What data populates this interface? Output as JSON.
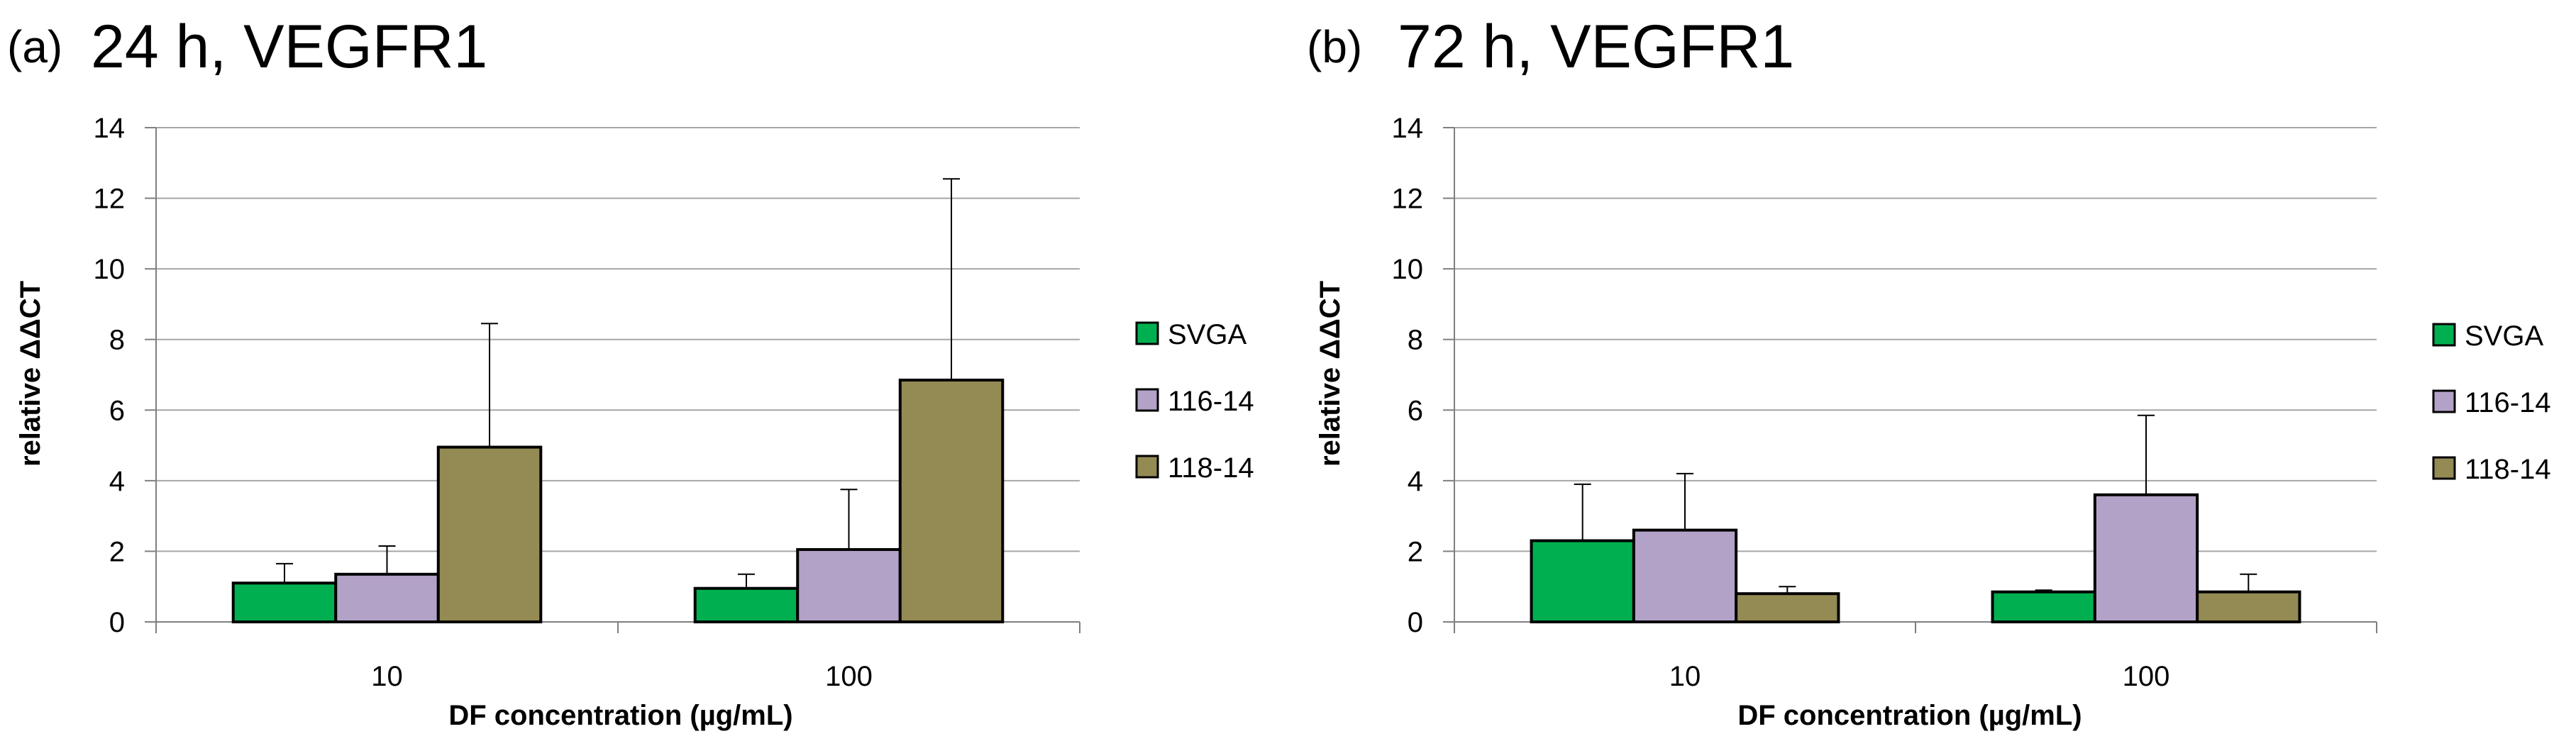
{
  "colors": {
    "SVGA": "#00b050",
    "116-14": "#b3a2c7",
    "118-14": "#948a54",
    "grid": "#a6a6a6",
    "axis": "#7f7f7f"
  },
  "chart_data": [
    {
      "type": "bar",
      "panel": "(a)",
      "title": "24 h, VEGFR1",
      "categories": [
        "10",
        "100"
      ],
      "series": [
        {
          "name": "SVGA",
          "values": [
            1.1,
            0.95
          ],
          "errors": [
            0.55,
            0.4
          ]
        },
        {
          "name": "116-14",
          "values": [
            1.35,
            2.05
          ],
          "errors": [
            0.8,
            1.7
          ]
        },
        {
          "name": "118-14",
          "values": [
            4.95,
            6.85
          ],
          "errors": [
            3.5,
            5.7
          ]
        }
      ],
      "xlabel": "DF concentration (µg/mL)",
      "ylabel": "relative ΔΔCT",
      "ylim": [
        0,
        14
      ],
      "yticks": [
        "0",
        "2",
        "4",
        "6",
        "8",
        "10",
        "12",
        "14"
      ],
      "grid": true,
      "legend_position": "right"
    },
    {
      "type": "bar",
      "panel": "(b)",
      "title": "72 h, VEGFR1",
      "categories": [
        "10",
        "100"
      ],
      "series": [
        {
          "name": "SVGA",
          "values": [
            2.3,
            0.85
          ],
          "errors": [
            1.6,
            0.05
          ]
        },
        {
          "name": "116-14",
          "values": [
            2.6,
            3.6
          ],
          "errors": [
            1.6,
            2.25
          ]
        },
        {
          "name": "118-14",
          "values": [
            0.8,
            0.85
          ],
          "errors": [
            0.2,
            0.5
          ]
        }
      ],
      "xlabel": "DF concentration (µg/mL)",
      "ylabel": "relative ΔΔCT",
      "ylim": [
        0,
        14
      ],
      "yticks": [
        "0",
        "2",
        "4",
        "6",
        "8",
        "10",
        "12",
        "14"
      ],
      "grid": true,
      "legend_position": "right"
    }
  ]
}
